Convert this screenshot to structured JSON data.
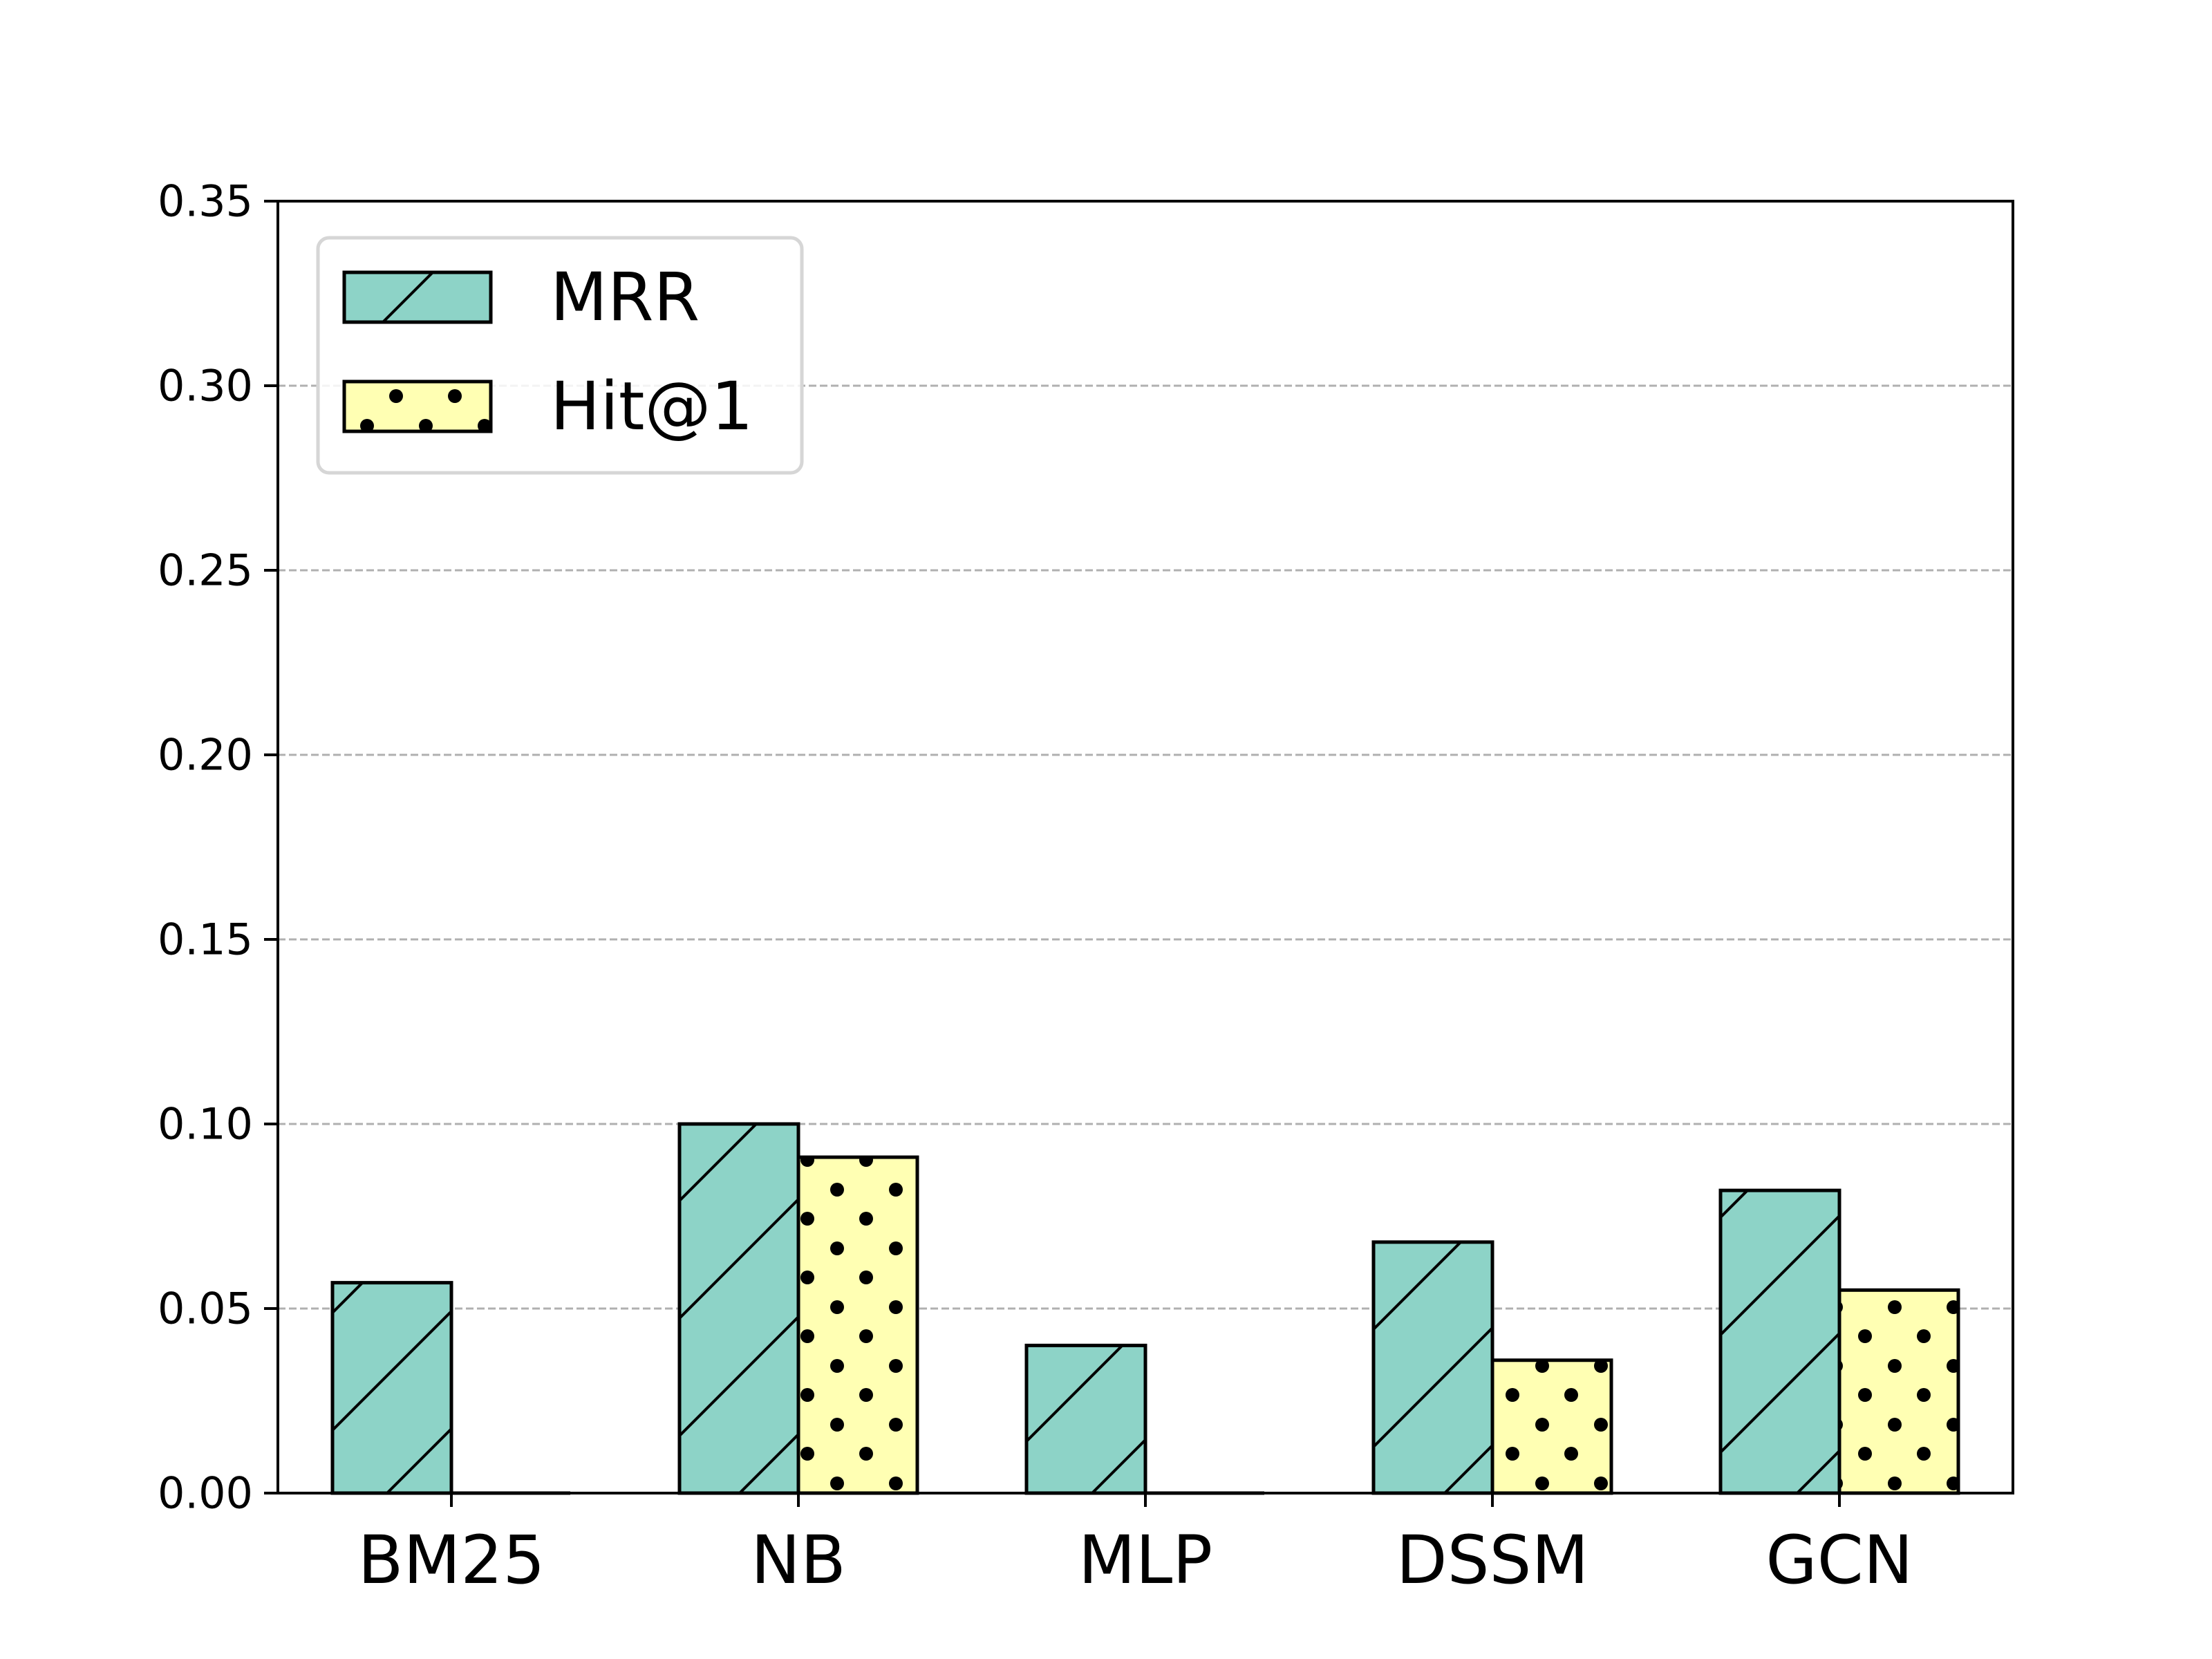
{
  "chart_data": {
    "type": "bar",
    "title": "",
    "xlabel": "",
    "ylabel": "",
    "categories": [
      "BM25",
      "NB",
      "MLP",
      "DSSM",
      "GCN"
    ],
    "series": [
      {
        "name": "MRR",
        "values": [
          0.057,
          0.1,
          0.04,
          0.068,
          0.082
        ],
        "color": "#8dd3c7",
        "hatch": "diagonal"
      },
      {
        "name": "Hit@1",
        "values": [
          0.0,
          0.091,
          0.0,
          0.036,
          0.055
        ],
        "color": "#ffffb3",
        "hatch": "dots"
      }
    ],
    "ylim": [
      0,
      0.35
    ],
    "yticks": [
      "0.00",
      "0.05",
      "0.10",
      "0.15",
      "0.20",
      "0.25",
      "0.30",
      "0.35"
    ],
    "grid": {
      "axis": "y",
      "style": "dashed",
      "color": "#b0b0b0"
    },
    "legend": {
      "position": "top-left"
    }
  }
}
